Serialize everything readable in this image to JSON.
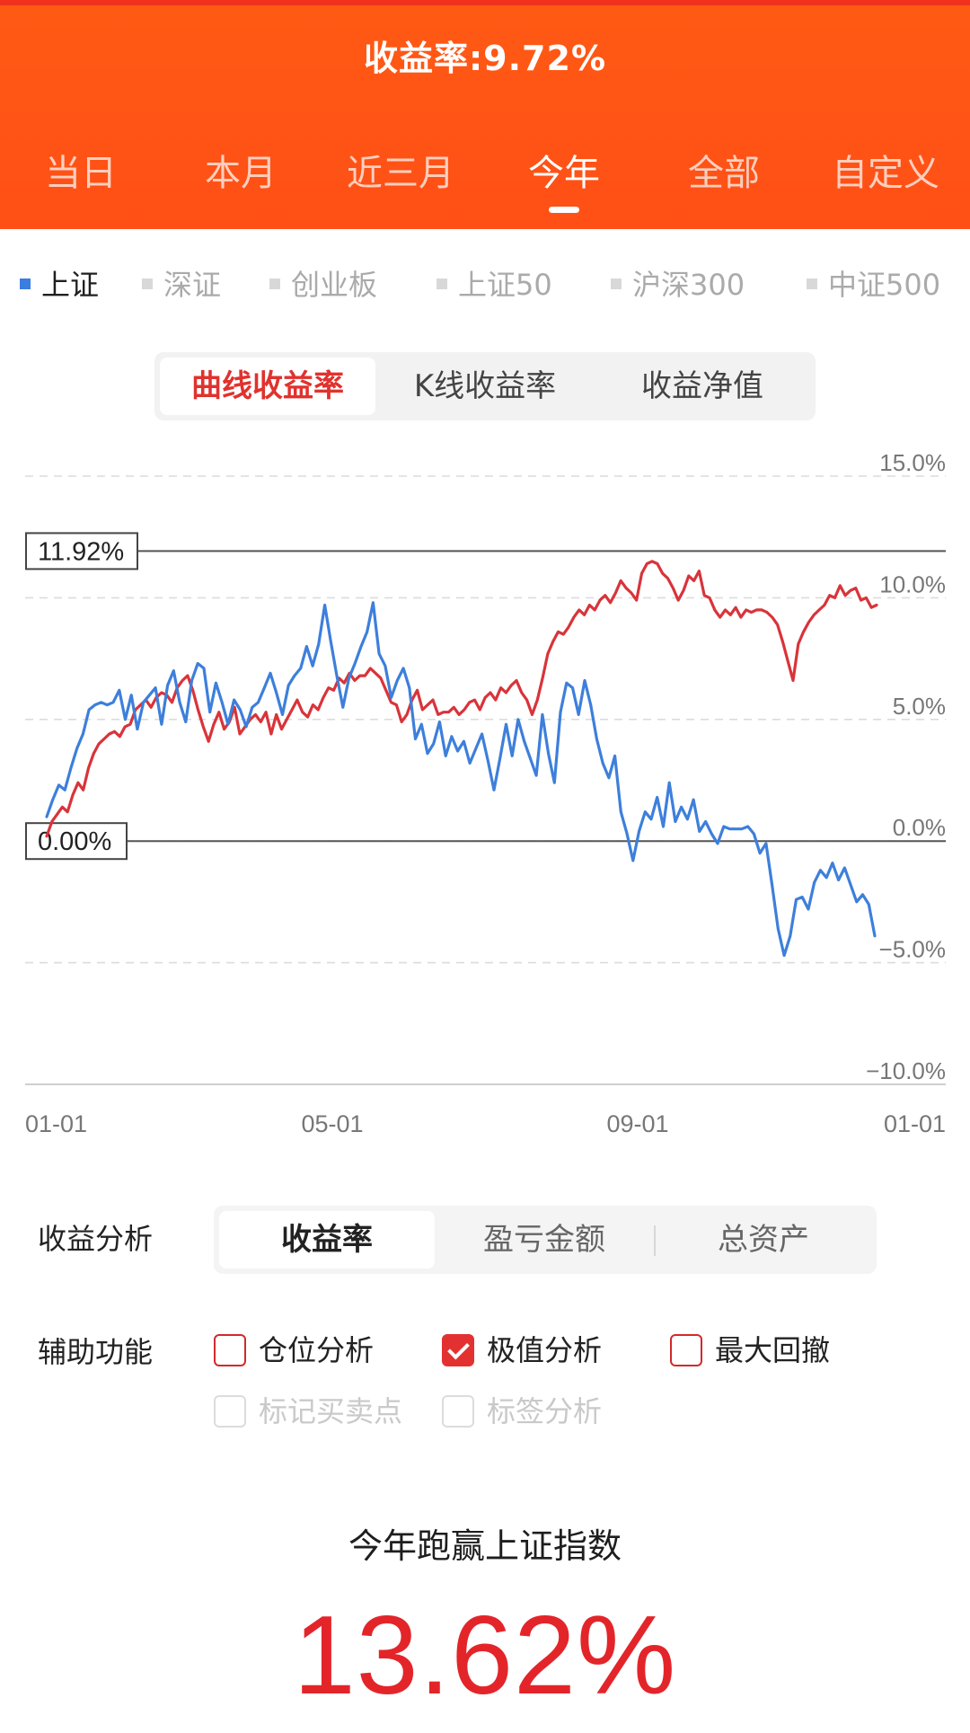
{
  "header": {
    "title": "收益率:9.72%",
    "period_tabs": [
      "当日",
      "本月",
      "近三月",
      "今年",
      "全部",
      "自定义"
    ],
    "active_period_index": 3,
    "background_color": "#ff4f16"
  },
  "index_tabs": {
    "items": [
      "上证",
      "深证",
      "创业板",
      "上证50",
      "沪深300",
      "中证500"
    ],
    "active_index": 0
  },
  "chart_mode_tabs": {
    "items": [
      "曲线收益率",
      "K线收益率",
      "收益净值"
    ],
    "active_index": 0
  },
  "chart_data": {
    "type": "line",
    "x_ticks": [
      "01-01",
      "05-01",
      "09-01",
      "01-01"
    ],
    "y_ticks": [
      "15.0%",
      "10.0%",
      "5.0%",
      "0.0%",
      "−5.0%",
      "−10.0%"
    ],
    "ylim": [
      -10,
      15
    ],
    "grid": true,
    "markers": [
      {
        "label": "11.92%",
        "value": 11.92
      },
      {
        "label": "0.00%",
        "value": 0.0
      }
    ],
    "series": [
      {
        "color": "#d8343a",
        "values": [
          0.2,
          0.8,
          1.1,
          1.4,
          1.2,
          1.9,
          2.4,
          2.1,
          3.0,
          3.6,
          4.0,
          4.2,
          4.4,
          4.5,
          4.3,
          4.7,
          4.8,
          5.4,
          5.6,
          5.8,
          5.5,
          5.9,
          6.1,
          6.0,
          5.7,
          6.3,
          6.6,
          6.8,
          6.2,
          5.4,
          4.7,
          4.1,
          4.8,
          5.3,
          4.6,
          4.9,
          5.5,
          4.4,
          4.7,
          5.0,
          5.2,
          4.9,
          5.3,
          4.4,
          5.2,
          4.6,
          5.0,
          5.4,
          5.8,
          5.3,
          5.1,
          5.6,
          5.4,
          5.9,
          6.3,
          6.2,
          6.7,
          6.5,
          6.9,
          6.6,
          6.8,
          6.8,
          7.1,
          6.9,
          6.7,
          6.2,
          5.7,
          5.6,
          4.9,
          5.2,
          5.8,
          6.2,
          5.4,
          5.6,
          5.8,
          5.2,
          5.3,
          5.3,
          5.5,
          5.2,
          5.4,
          5.7,
          5.8,
          5.4,
          5.9,
          6.1,
          5.8,
          6.3,
          6.1,
          6.4,
          6.6,
          6.1,
          5.8,
          5.2,
          5.8,
          6.7,
          7.7,
          8.2,
          8.6,
          8.5,
          8.8,
          9.2,
          9.5,
          9.3,
          9.7,
          9.5,
          9.9,
          10.1,
          9.8,
          10.2,
          10.7,
          10.4,
          10.2,
          9.9,
          11.0,
          11.4,
          11.5,
          11.4,
          11.0,
          10.8,
          10.4,
          9.9,
          10.3,
          10.9,
          10.7,
          11.1,
          10.1,
          10.0,
          9.5,
          9.2,
          9.5,
          9.3,
          9.6,
          9.2,
          9.5,
          9.4,
          9.5,
          9.5,
          9.4,
          9.2,
          8.9,
          8.2,
          7.4,
          6.6,
          8.1,
          8.6,
          9.0,
          9.3,
          9.5,
          9.7,
          10.1,
          10.0,
          10.5,
          10.1,
          10.3,
          10.4,
          9.9,
          10.0,
          9.6,
          9.7
        ]
      },
      {
        "color": "#3d7fdb",
        "values": [
          1.0,
          1.7,
          2.3,
          2.1,
          3.0,
          3.8,
          4.4,
          5.4,
          5.6,
          5.7,
          5.6,
          5.7,
          6.2,
          5.0,
          6.0,
          4.6,
          5.7,
          6.0,
          6.3,
          4.8,
          6.4,
          7.0,
          5.7,
          4.9,
          6.6,
          7.3,
          7.1,
          5.3,
          6.5,
          5.7,
          4.8,
          5.8,
          5.4,
          4.7,
          5.5,
          5.7,
          6.3,
          6.9,
          6.1,
          5.2,
          6.4,
          6.8,
          7.1,
          8.0,
          7.2,
          8.1,
          9.7,
          8.2,
          6.8,
          5.5,
          6.7,
          7.3,
          8.0,
          8.6,
          9.8,
          7.7,
          7.2,
          5.9,
          6.6,
          7.1,
          6.3,
          4.2,
          4.8,
          3.6,
          4.0,
          4.9,
          3.5,
          4.3,
          3.7,
          4.1,
          3.2,
          3.8,
          4.4,
          3.3,
          2.1,
          3.4,
          4.8,
          3.5,
          5.0,
          4.1,
          3.4,
          2.7,
          5.2,
          3.6,
          2.4,
          5.3,
          6.5,
          6.3,
          5.2,
          6.6,
          5.6,
          4.2,
          3.2,
          2.6,
          3.5,
          1.2,
          0.3,
          -0.8,
          0.4,
          1.2,
          0.9,
          1.8,
          0.6,
          2.4,
          0.8,
          1.4,
          0.9,
          1.7,
          0.4,
          0.8,
          0.3,
          -0.1,
          0.6,
          0.5,
          0.5,
          0.5,
          0.6,
          0.3,
          -0.5,
          -0.1,
          -1.8,
          -3.6,
          -4.7,
          -3.9,
          -2.4,
          -2.3,
          -2.8,
          -1.7,
          -1.2,
          -1.5,
          -0.9,
          -1.6,
          -1.1,
          -1.8,
          -2.5,
          -2.2,
          -2.6,
          -3.9
        ]
      }
    ]
  },
  "analysis": {
    "label": "收益分析",
    "tabs": [
      "收益率",
      "盈亏金额",
      "总资产"
    ],
    "active_index": 0
  },
  "aux": {
    "label": "辅助功能",
    "options": [
      {
        "label": "仓位分析",
        "checked": false,
        "disabled": false
      },
      {
        "label": "极值分析",
        "checked": true,
        "disabled": false
      },
      {
        "label": "最大回撤",
        "checked": false,
        "disabled": false
      },
      {
        "label": "标记买卖点",
        "checked": false,
        "disabled": true
      },
      {
        "label": "标签分析",
        "checked": false,
        "disabled": true
      }
    ]
  },
  "summary": {
    "title": "今年跑赢上证指数",
    "value": "13.62%"
  }
}
